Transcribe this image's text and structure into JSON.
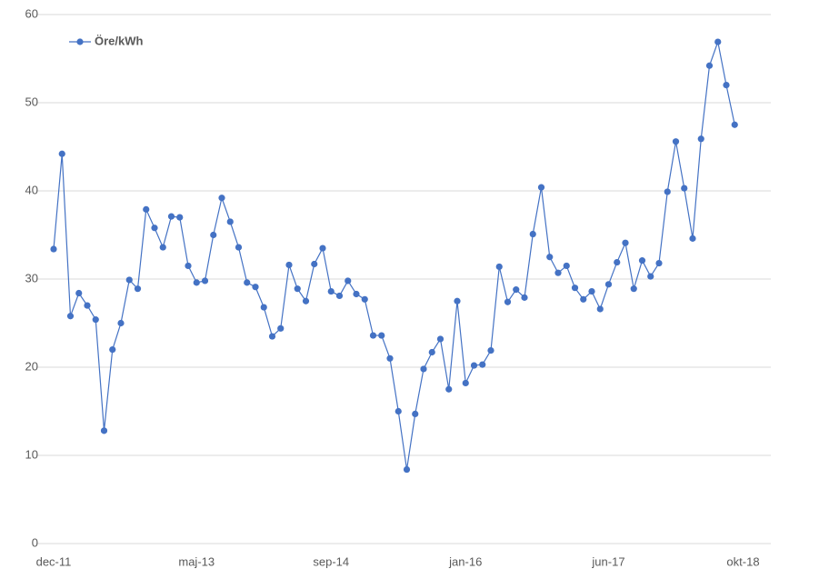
{
  "chart_data": {
    "type": "line",
    "categories": [
      "dec-11",
      null,
      null,
      null,
      null,
      null,
      null,
      null,
      null,
      null,
      null,
      null,
      null,
      null,
      null,
      null,
      null,
      "maj-13",
      null,
      null,
      null,
      null,
      null,
      null,
      null,
      null,
      null,
      null,
      null,
      null,
      null,
      null,
      null,
      "sep-14",
      null,
      null,
      null,
      null,
      null,
      null,
      null,
      null,
      null,
      null,
      null,
      null,
      null,
      null,
      null,
      "jan-16",
      null,
      null,
      null,
      null,
      null,
      null,
      null,
      null,
      null,
      null,
      null,
      null,
      null,
      null,
      null,
      null,
      "jun-17",
      null,
      null,
      null,
      null,
      null,
      null,
      null,
      null,
      null,
      null,
      null,
      null,
      null,
      null,
      null,
      "okt-18"
    ],
    "series": [
      {
        "name": "Öre/kWh",
        "color": "#4472c4",
        "values": [
          33.4,
          44.2,
          25.8,
          28.4,
          27,
          25.4,
          12.8,
          22,
          25,
          29.9,
          28.9,
          37.9,
          35.8,
          33.6,
          37.1,
          37,
          31.5,
          29.6,
          29.8,
          35,
          39.2,
          36.5,
          33.6,
          29.6,
          29.1,
          26.8,
          23.5,
          24.4,
          31.6,
          28.9,
          27.5,
          31.7,
          33.5,
          28.6,
          28.1,
          29.8,
          28.3,
          27.7,
          23.6,
          23.6,
          21,
          15,
          8.4,
          14.7,
          19.8,
          21.7,
          23.2,
          17.5,
          27.5,
          18.2,
          20.2,
          20.3,
          21.9,
          31.4,
          27.4,
          28.8,
          27.9,
          35.1,
          40.4,
          32.5,
          30.7,
          31.5,
          29,
          27.7,
          28.6,
          26.6,
          29.4,
          31.9,
          34.1,
          28.9,
          32.1,
          30.3,
          31.8,
          39.9,
          45.6,
          40.3,
          34.6,
          45.9,
          54.2,
          56.9,
          52,
          47.5,
          null
        ]
      }
    ],
    "ylim": [
      0,
      60
    ],
    "yticks": [
      0,
      10,
      20,
      30,
      40,
      50,
      60
    ],
    "grid": true,
    "legend": "top-left"
  }
}
